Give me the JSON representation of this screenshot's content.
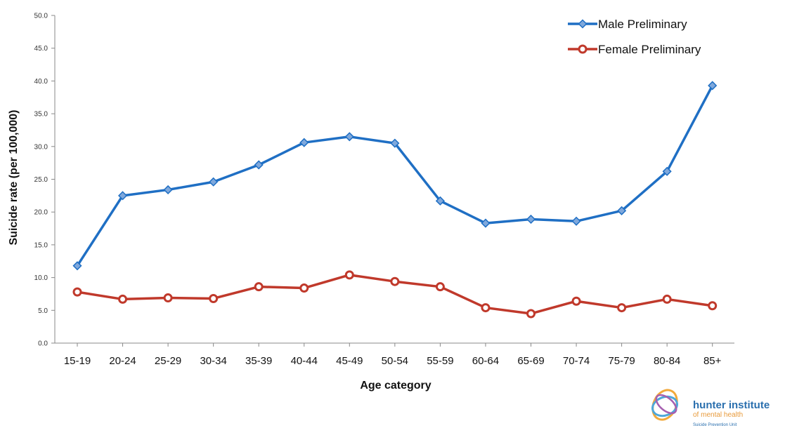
{
  "chart_data": {
    "type": "line",
    "categories": [
      "15-19",
      "20-24",
      "25-29",
      "30-34",
      "35-39",
      "40-44",
      "45-49",
      "50-54",
      "55-59",
      "60-64",
      "65-69",
      "70-74",
      "75-79",
      "80-84",
      "85+"
    ],
    "series": [
      {
        "name": "Male Preliminary",
        "color": "#1f6fc4",
        "marker": "diamond",
        "values": [
          11.8,
          22.5,
          23.4,
          24.6,
          27.2,
          30.6,
          31.5,
          30.5,
          21.7,
          18.3,
          18.9,
          18.6,
          20.2,
          26.2,
          39.3
        ]
      },
      {
        "name": "Female Preliminary",
        "color": "#c0392b",
        "marker": "circle",
        "values": [
          7.8,
          6.7,
          6.9,
          6.8,
          8.6,
          8.4,
          10.4,
          9.4,
          8.6,
          5.4,
          4.5,
          6.4,
          5.4,
          6.7,
          5.7
        ]
      }
    ],
    "xlabel": "Age category",
    "ylabel": "Suicide rate (per 100,000)",
    "ylim": [
      0,
      50
    ],
    "yticks": [
      "0.0",
      "5.0",
      "10.0",
      "15.0",
      "20.0",
      "25.0",
      "30.0",
      "35.0",
      "40.0",
      "45.0",
      "50.0"
    ],
    "grid": false,
    "legend_position": "top-right"
  },
  "logo": {
    "name": "hunter institute",
    "subtitle": "of mental health",
    "tagline": "Suicide Prevention Unit"
  }
}
